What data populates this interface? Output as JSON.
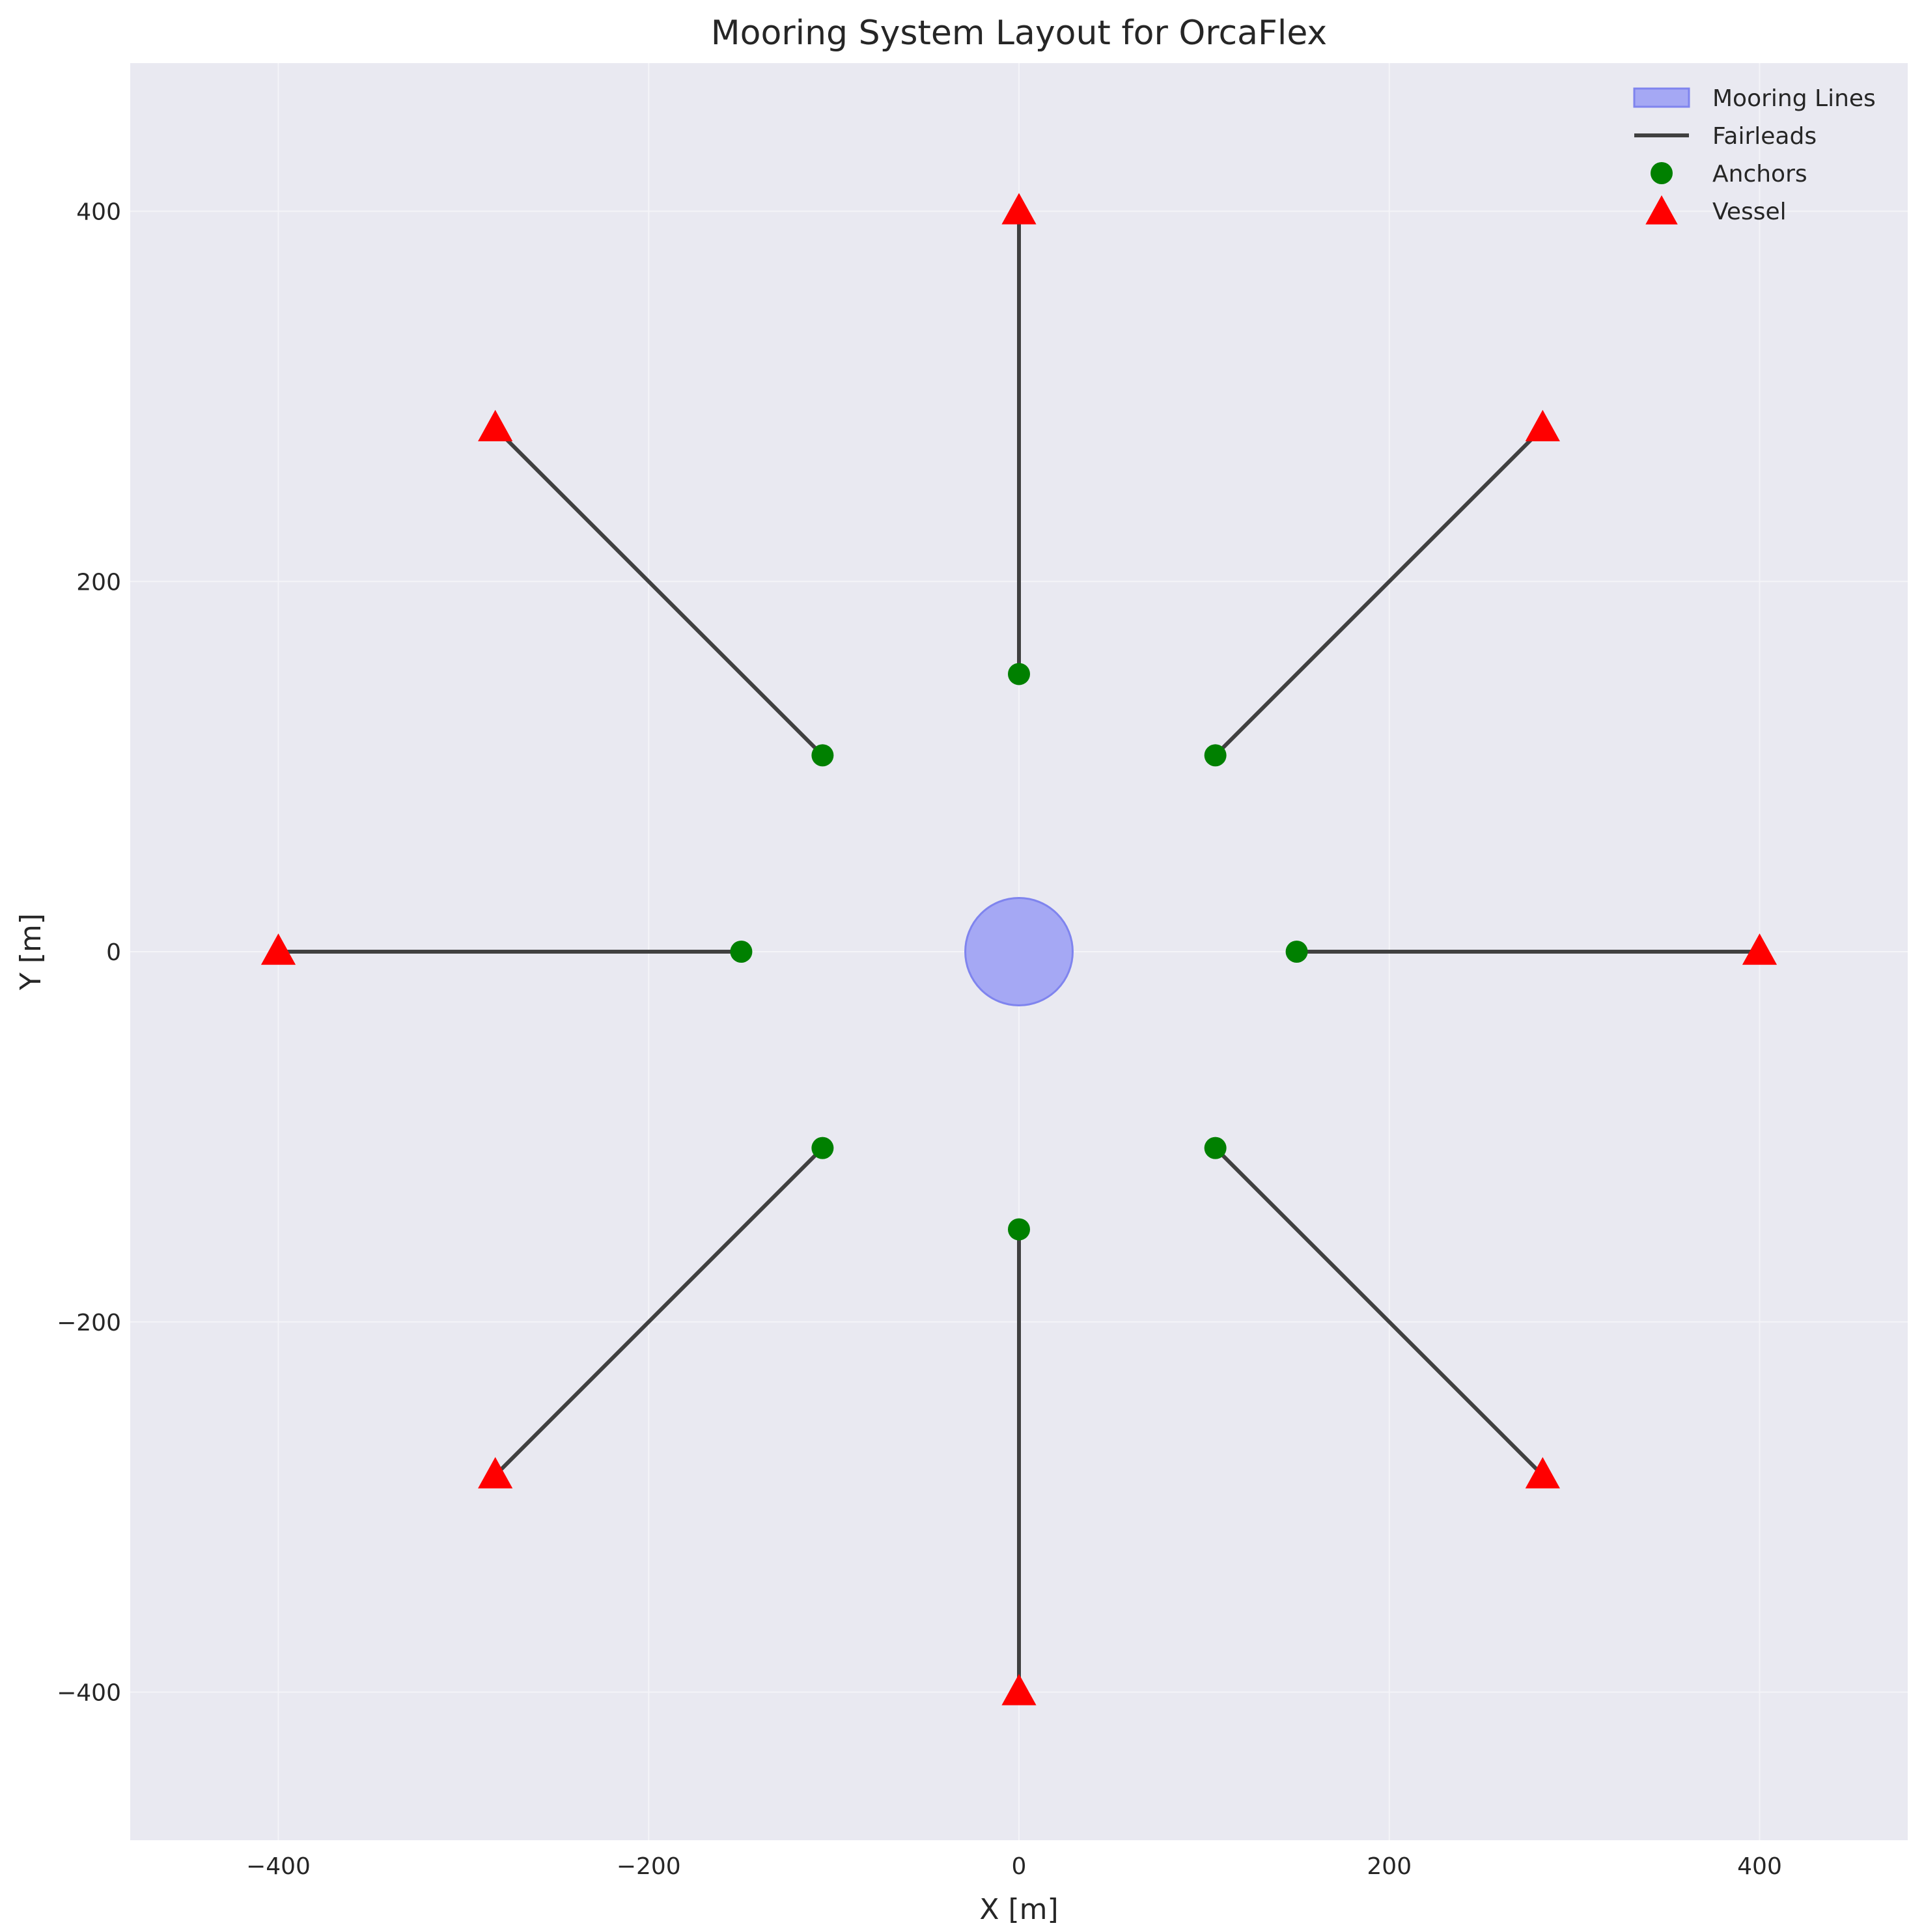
{
  "chart_data": {
    "type": "scatter",
    "title": "Mooring System Layout for OrcaFlex",
    "xlabel": "X [m]",
    "ylabel": "Y [m]",
    "xlim": [
      -480,
      480
    ],
    "ylim": [
      -480,
      480
    ],
    "xticks": [
      -400,
      -200,
      0,
      200,
      400
    ],
    "yticks": [
      -400,
      -200,
      0,
      200,
      400
    ],
    "xtick_labels": [
      "−400",
      "−200",
      "0",
      "200",
      "400"
    ],
    "ytick_labels": [
      "−400",
      "−200",
      "0",
      "200",
      "400"
    ],
    "grid": true,
    "legend_position": "top-right",
    "platform": {
      "x": 0,
      "y": 0,
      "radius": 29
    },
    "series": [
      {
        "name": "Mooring Lines",
        "kind": "filled-circle",
        "color": "#0000ff",
        "fill": "#a5a8f4",
        "stroke": "#7f84ee"
      },
      {
        "name": "Fairleads",
        "kind": "lines",
        "color": "#404040",
        "segments": [
          [
            [
              150,
              0
            ],
            [
              400,
              0
            ]
          ],
          [
            [
              106.07,
              106.07
            ],
            [
              282.84,
              282.84
            ]
          ],
          [
            [
              0,
              150
            ],
            [
              0,
              400
            ]
          ],
          [
            [
              -106.07,
              106.07
            ],
            [
              -282.84,
              282.84
            ]
          ],
          [
            [
              -150,
              0
            ],
            [
              -400,
              0
            ]
          ],
          [
            [
              -106.07,
              -106.07
            ],
            [
              -282.84,
              -282.84
            ]
          ],
          [
            [
              0,
              -150
            ],
            [
              0,
              -400
            ]
          ],
          [
            [
              106.07,
              -106.07
            ],
            [
              282.84,
              -282.84
            ]
          ]
        ]
      },
      {
        "name": "Anchors",
        "kind": "circle-markers",
        "color": "#008000",
        "points": [
          [
            150,
            0
          ],
          [
            106.07,
            106.07
          ],
          [
            0,
            150
          ],
          [
            -106.07,
            106.07
          ],
          [
            -150,
            0
          ],
          [
            -106.07,
            -106.07
          ],
          [
            0,
            -150
          ],
          [
            106.07,
            -106.07
          ]
        ]
      },
      {
        "name": "Vessel",
        "kind": "triangle-markers",
        "color": "#ff0000",
        "points": [
          [
            400,
            0
          ],
          [
            282.84,
            282.84
          ],
          [
            0,
            400
          ],
          [
            -282.84,
            282.84
          ],
          [
            -400,
            0
          ],
          [
            -282.84,
            -282.84
          ],
          [
            0,
            -400
          ],
          [
            282.84,
            -282.84
          ]
        ]
      }
    ]
  },
  "colors": {
    "figure_bg": "#ffffff",
    "axes_bg": "#e9e9f1",
    "grid": "#f4f4f8",
    "text": "#262626"
  }
}
